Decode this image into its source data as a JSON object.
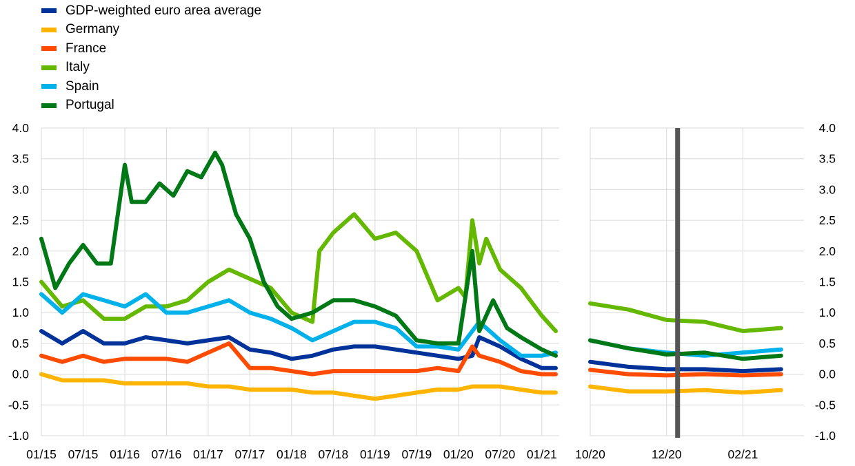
{
  "legend": [
    {
      "label": "GDP-weighted euro area average",
      "color": "#003299"
    },
    {
      "label": "Germany",
      "color": "#FFB400"
    },
    {
      "label": "France",
      "color": "#FF4B00"
    },
    {
      "label": "Italy",
      "color": "#65B800"
    },
    {
      "label": "Spain",
      "color": "#00B1EA"
    },
    {
      "label": "Portugal",
      "color": "#007816"
    }
  ],
  "chart_data": [
    {
      "type": "line",
      "panel": "left",
      "x_ticks": [
        "01/15",
        "07/15",
        "01/16",
        "07/16",
        "01/17",
        "07/17",
        "01/18",
        "07/18",
        "01/19",
        "07/19",
        "01/20",
        "07/20",
        "01/21"
      ],
      "y_ticks": [
        "4.0",
        "3.5",
        "3.0",
        "2.5",
        "2.0",
        "1.5",
        "1.0",
        "0.5",
        "0.0",
        "-0.5",
        "-1.0"
      ],
      "ylim": [
        -1.0,
        4.0
      ],
      "grid": "horizontal and vertical",
      "series": [
        {
          "name": "GDP-weighted euro area average",
          "color": "#003299",
          "x": [
            "01/15",
            "04/15",
            "07/15",
            "10/15",
            "01/16",
            "04/16",
            "07/16",
            "10/16",
            "01/17",
            "04/17",
            "07/17",
            "10/17",
            "01/18",
            "04/18",
            "07/18",
            "10/18",
            "01/19",
            "04/19",
            "07/19",
            "10/19",
            "01/20",
            "03/20",
            "04/20",
            "07/20",
            "10/20",
            "01/21",
            "03/21"
          ],
          "values": [
            0.7,
            0.5,
            0.7,
            0.5,
            0.5,
            0.6,
            0.55,
            0.5,
            0.55,
            0.6,
            0.4,
            0.35,
            0.25,
            0.3,
            0.4,
            0.45,
            0.45,
            0.4,
            0.35,
            0.3,
            0.25,
            0.3,
            0.6,
            0.45,
            0.25,
            0.1,
            0.1
          ]
        },
        {
          "name": "Germany",
          "color": "#FFB400",
          "x": [
            "01/15",
            "04/15",
            "07/15",
            "10/15",
            "01/16",
            "04/16",
            "07/16",
            "10/16",
            "01/17",
            "04/17",
            "07/17",
            "10/17",
            "01/18",
            "04/18",
            "07/18",
            "10/18",
            "01/19",
            "04/19",
            "07/19",
            "10/19",
            "01/20",
            "03/20",
            "04/20",
            "07/20",
            "10/20",
            "01/21",
            "03/21"
          ],
          "values": [
            0.0,
            -0.1,
            -0.1,
            -0.1,
            -0.15,
            -0.15,
            -0.15,
            -0.15,
            -0.2,
            -0.2,
            -0.25,
            -0.25,
            -0.25,
            -0.3,
            -0.3,
            -0.35,
            -0.4,
            -0.35,
            -0.3,
            -0.25,
            -0.25,
            -0.2,
            -0.2,
            -0.2,
            -0.25,
            -0.3,
            -0.3
          ]
        },
        {
          "name": "France",
          "color": "#FF4B00",
          "x": [
            "01/15",
            "04/15",
            "07/15",
            "10/15",
            "01/16",
            "04/16",
            "07/16",
            "10/16",
            "01/17",
            "04/17",
            "07/17",
            "10/17",
            "01/18",
            "04/18",
            "07/18",
            "10/18",
            "01/19",
            "04/19",
            "07/19",
            "10/19",
            "01/20",
            "03/20",
            "04/20",
            "07/20",
            "10/20",
            "01/21",
            "03/21"
          ],
          "values": [
            0.3,
            0.2,
            0.3,
            0.2,
            0.25,
            0.25,
            0.25,
            0.2,
            0.35,
            0.5,
            0.1,
            0.1,
            0.05,
            0.0,
            0.05,
            0.05,
            0.05,
            0.05,
            0.05,
            0.1,
            0.05,
            0.45,
            0.3,
            0.2,
            0.05,
            0.0,
            0.0
          ]
        },
        {
          "name": "Italy",
          "color": "#65B800",
          "x": [
            "01/15",
            "04/15",
            "07/15",
            "10/15",
            "01/16",
            "04/16",
            "07/16",
            "10/16",
            "01/17",
            "04/17",
            "07/17",
            "10/17",
            "01/18",
            "04/18",
            "05/18",
            "07/18",
            "10/18",
            "01/19",
            "04/19",
            "07/19",
            "10/19",
            "01/20",
            "02/20",
            "03/20",
            "04/20",
            "05/20",
            "07/20",
            "10/20",
            "01/21",
            "03/21"
          ],
          "values": [
            1.5,
            1.1,
            1.2,
            0.9,
            0.9,
            1.1,
            1.1,
            1.2,
            1.5,
            1.7,
            1.55,
            1.4,
            1.0,
            0.85,
            2.0,
            2.3,
            2.6,
            2.2,
            2.3,
            2.0,
            1.2,
            1.4,
            1.25,
            2.5,
            1.8,
            2.2,
            1.7,
            1.4,
            0.95,
            0.7
          ]
        },
        {
          "name": "Spain",
          "color": "#00B1EA",
          "x": [
            "01/15",
            "04/15",
            "07/15",
            "10/15",
            "01/16",
            "04/16",
            "07/16",
            "10/16",
            "01/17",
            "04/17",
            "07/17",
            "10/17",
            "01/18",
            "04/18",
            "07/18",
            "10/18",
            "01/19",
            "04/19",
            "07/19",
            "10/19",
            "01/20",
            "03/20",
            "04/20",
            "07/20",
            "10/20",
            "01/21",
            "03/21"
          ],
          "values": [
            1.3,
            1.0,
            1.3,
            1.2,
            1.1,
            1.3,
            1.0,
            1.0,
            1.1,
            1.2,
            1.0,
            0.9,
            0.75,
            0.55,
            0.7,
            0.85,
            0.85,
            0.75,
            0.45,
            0.45,
            0.4,
            0.7,
            0.85,
            0.55,
            0.3,
            0.3,
            0.35
          ]
        },
        {
          "name": "Portugal",
          "color": "#007816",
          "x": [
            "01/15",
            "03/15",
            "05/15",
            "07/15",
            "09/15",
            "11/15",
            "01/16",
            "02/16",
            "04/16",
            "06/16",
            "08/16",
            "10/16",
            "12/16",
            "02/17",
            "03/17",
            "05/17",
            "07/17",
            "09/17",
            "11/17",
            "01/18",
            "04/18",
            "07/18",
            "10/18",
            "01/19",
            "04/19",
            "07/19",
            "10/19",
            "01/20",
            "03/20",
            "04/20",
            "06/20",
            "08/20",
            "10/20",
            "01/21",
            "03/21"
          ],
          "values": [
            2.2,
            1.4,
            1.8,
            2.1,
            1.8,
            1.8,
            3.4,
            2.8,
            2.8,
            3.1,
            2.9,
            3.3,
            3.2,
            3.6,
            3.4,
            2.6,
            2.2,
            1.5,
            1.1,
            0.9,
            1.0,
            1.2,
            1.2,
            1.1,
            0.95,
            0.55,
            0.5,
            0.5,
            2.0,
            0.7,
            1.2,
            0.75,
            0.6,
            0.4,
            0.3
          ]
        }
      ]
    },
    {
      "type": "line",
      "panel": "right",
      "x_ticks": [
        "10/20",
        "12/20",
        "02/21"
      ],
      "y_ticks": [
        "4.0",
        "3.5",
        "3.0",
        "2.5",
        "2.0",
        "1.5",
        "1.0",
        "0.5",
        "0.0",
        "-0.5",
        "-1.0"
      ],
      "ylim": [
        -1.0,
        4.0
      ],
      "grid": "horizontal and vertical",
      "marker_line": "12/20",
      "series": [
        {
          "name": "GDP-weighted euro area average",
          "color": "#003299",
          "x": [
            "10/20",
            "11/20",
            "12/20",
            "01/21",
            "02/21",
            "03/21"
          ],
          "values": [
            0.2,
            0.12,
            0.08,
            0.08,
            0.05,
            0.08
          ]
        },
        {
          "name": "Germany",
          "color": "#FFB400",
          "x": [
            "10/20",
            "11/20",
            "12/20",
            "01/21",
            "02/21",
            "03/21"
          ],
          "values": [
            -0.2,
            -0.28,
            -0.28,
            -0.26,
            -0.3,
            -0.26
          ]
        },
        {
          "name": "France",
          "color": "#FF4B00",
          "x": [
            "10/20",
            "11/20",
            "12/20",
            "01/21",
            "02/21",
            "03/21"
          ],
          "values": [
            0.07,
            0.0,
            -0.02,
            0.0,
            -0.02,
            0.0
          ]
        },
        {
          "name": "Italy",
          "color": "#65B800",
          "x": [
            "10/20",
            "11/20",
            "12/20",
            "01/21",
            "02/21",
            "03/21"
          ],
          "values": [
            1.15,
            1.05,
            0.88,
            0.85,
            0.7,
            0.75
          ]
        },
        {
          "name": "Spain",
          "color": "#00B1EA",
          "x": [
            "10/20",
            "11/20",
            "12/20",
            "01/21",
            "02/21",
            "03/21"
          ],
          "values": [
            0.55,
            0.42,
            0.35,
            0.3,
            0.35,
            0.4
          ]
        },
        {
          "name": "Portugal",
          "color": "#007816",
          "x": [
            "10/20",
            "11/20",
            "12/20",
            "01/21",
            "02/21",
            "03/21"
          ],
          "values": [
            0.55,
            0.42,
            0.32,
            0.35,
            0.25,
            0.3
          ]
        }
      ]
    }
  ]
}
